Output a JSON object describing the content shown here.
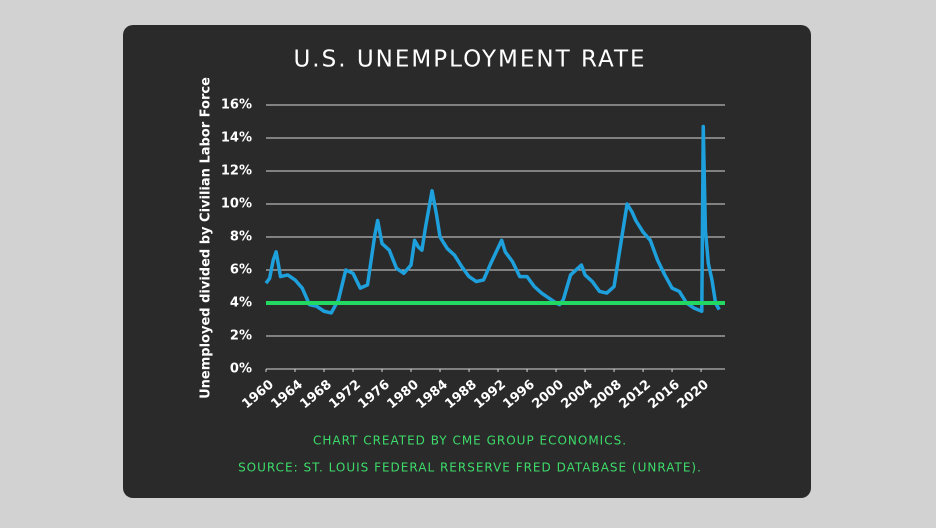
{
  "chart_data": {
    "type": "line",
    "title": "U.S. UNEMPLOYMENT RATE",
    "y_label": "Unemployed divided by Civilian Labor Force",
    "footnotes": [
      "CHART CREATED BY CME GROUP ECONOMICS.",
      "SOURCE:  ST. LOUIS FEDERAL RERSERVE FRED DATABASE (UNRATE)."
    ],
    "x": [
      1960,
      1960.5,
      1961,
      1961.4,
      1962,
      1963,
      1964,
      1965,
      1966,
      1967,
      1968,
      1969,
      1970,
      1971,
      1972,
      1973,
      1974,
      1975,
      1975.4,
      1976,
      1977,
      1978,
      1979,
      1980,
      1980.5,
      1981,
      1981.5,
      1982,
      1982.9,
      1983.5,
      1984,
      1985,
      1986,
      1987,
      1988,
      1989,
      1990,
      1991,
      1992.5,
      1993,
      1994,
      1995,
      1996,
      1997,
      1998,
      1999,
      2000,
      2000.5,
      2001,
      2002,
      2003.5,
      2004,
      2005,
      2006,
      2007,
      2008,
      2009,
      2009.8,
      2010.5,
      2011,
      2012,
      2013,
      2014,
      2015,
      2016,
      2017,
      2018,
      2019,
      2020.1,
      2020.3,
      2020.6,
      2021,
      2021.5,
      2022,
      2022.5
    ],
    "values": [
      5.2,
      5.5,
      6.6,
      7.1,
      5.6,
      5.7,
      5.4,
      4.9,
      3.9,
      3.8,
      3.5,
      3.4,
      4.2,
      6.0,
      5.8,
      4.9,
      5.1,
      8.1,
      9.0,
      7.6,
      7.2,
      6.1,
      5.8,
      6.3,
      7.8,
      7.4,
      7.2,
      8.6,
      10.8,
      9.4,
      8.0,
      7.3,
      6.9,
      6.2,
      5.6,
      5.3,
      5.4,
      6.4,
      7.8,
      7.1,
      6.5,
      5.6,
      5.6,
      5.0,
      4.6,
      4.3,
      4.0,
      3.9,
      4.2,
      5.7,
      6.3,
      5.7,
      5.3,
      4.7,
      4.6,
      5.0,
      7.8,
      10.0,
      9.5,
      9.0,
      8.3,
      7.8,
      6.6,
      5.7,
      4.9,
      4.7,
      4.0,
      3.7,
      3.5,
      14.7,
      8.4,
      6.4,
      5.4,
      4.0,
      3.6
    ],
    "color": "#1ea0dc",
    "reference_line": 4,
    "reference_color": "#22d860",
    "xlim": [
      1960,
      2023.3
    ],
    "xticks": [
      1960,
      1964,
      1968,
      1972,
      1976,
      1980,
      1984,
      1988,
      1992,
      1996,
      2000,
      2004,
      2008,
      2012,
      2016,
      2020
    ],
    "ylim": [
      0,
      16
    ],
    "yticks": [
      {
        "value": 0,
        "label": "0%"
      },
      {
        "value": 2,
        "label": "2%"
      },
      {
        "value": 4,
        "label": "4%"
      },
      {
        "value": 6,
        "label": "6%"
      },
      {
        "value": 8,
        "label": "8%"
      },
      {
        "value": 10,
        "label": "10%"
      },
      {
        "value": 12,
        "label": "12%"
      },
      {
        "value": 14,
        "label": "14%"
      },
      {
        "value": 16,
        "label": "16%"
      }
    ],
    "grid": true
  }
}
